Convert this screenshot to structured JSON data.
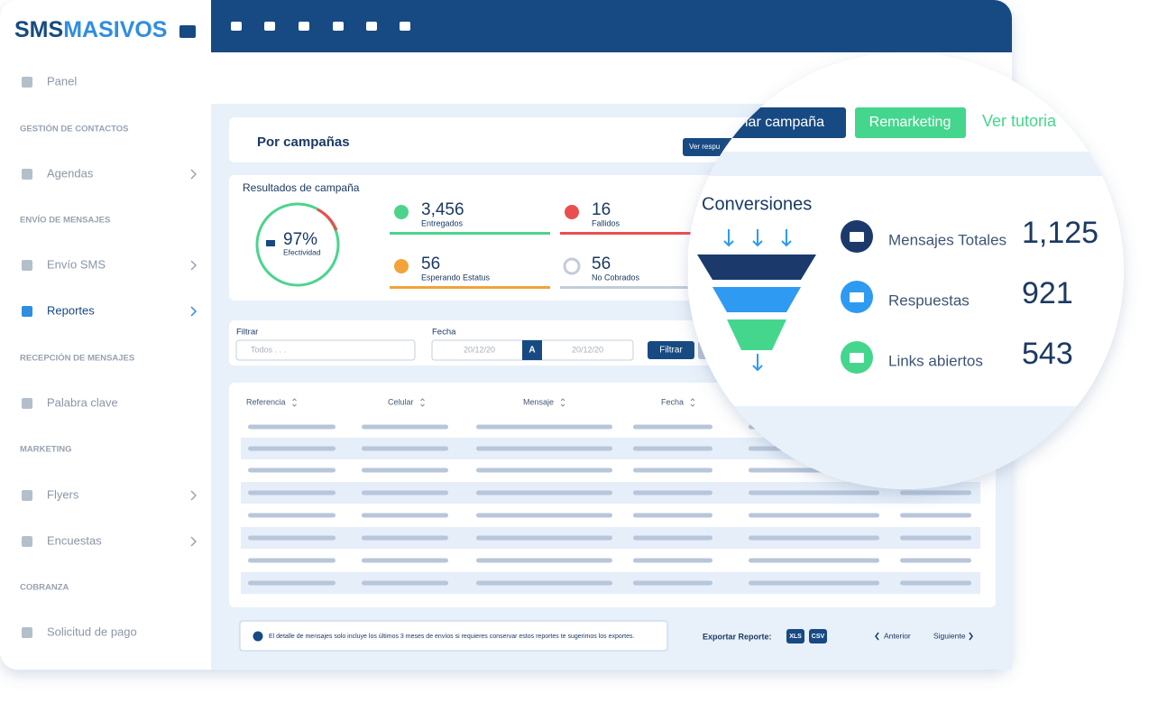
{
  "sidebar": {
    "logo": [
      "SMS",
      "MASIVOS"
    ],
    "panel": "Panel",
    "sections": [
      {
        "heading": "GESTIÓN DE CONTACTOS",
        "items": [
          "Agendas"
        ]
      },
      {
        "heading": "ENVÍO DE MENSAJES",
        "items": [
          "Envío SMS",
          "Reportes"
        ]
      },
      {
        "heading": "RECEPCIÓN DE MENSAJES",
        "items": [
          "Palabra clave"
        ]
      },
      {
        "heading": "MARKETING",
        "items": [
          "Flyers",
          "Encuestas"
        ]
      },
      {
        "heading": "COBRANZA",
        "items": [
          "Solicitud de pago"
        ]
      }
    ]
  },
  "page": {
    "title": "Por campañas",
    "button": "Ver respu"
  },
  "results": {
    "title": "Resultados de campaña",
    "effectiveness": {
      "value": "97%",
      "label": "Efectividad"
    },
    "stats": [
      {
        "value": "3,456",
        "label": "Entregados"
      },
      {
        "value": "16",
        "label": "Fallidos"
      },
      {
        "value": "56",
        "label": "Esperando Estatus"
      },
      {
        "value": "56",
        "label": "No Cobrados"
      }
    ]
  },
  "filter": {
    "label": "Filtrar",
    "placeholder": "Todos . . .",
    "date_label": "Fecha",
    "from": "20/12/20",
    "separator": "A",
    "to": "20/12/20",
    "button": "Filtrar"
  },
  "table": {
    "columns": [
      "Referencia",
      "Celular",
      "Mensaje",
      "Fecha"
    ]
  },
  "footer": {
    "note": "El detalle de mensajes solo incluye los últimos 3 meses de envíos si requieres conservar estos reportes te sugerimos los exportes.",
    "export_label": "Exportar Reporte:",
    "formats": [
      "XLS",
      "CSV"
    ],
    "previous": "Anterior",
    "next": "Siguiente"
  },
  "magnifier": {
    "buttons": [
      "viar campaña",
      "Remarketing"
    ],
    "tutorial": "Ver tutoria",
    "title": "Conversiones",
    "metrics": [
      {
        "label": "Mensajes Totales",
        "value": "1,125"
      },
      {
        "label": "Respuestas",
        "value": "921"
      },
      {
        "label": "Links abiertos",
        "value": "543"
      }
    ]
  }
}
